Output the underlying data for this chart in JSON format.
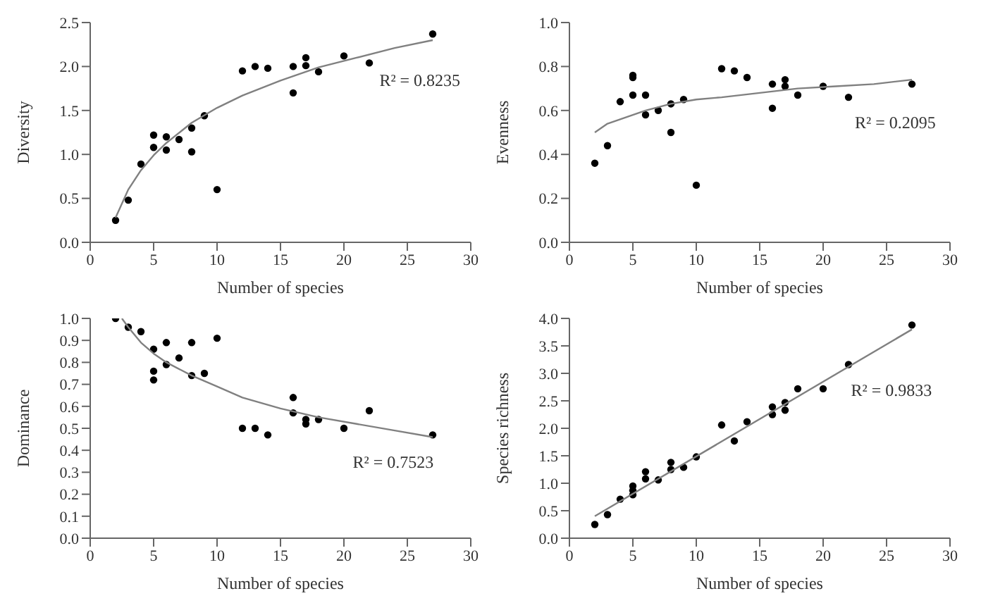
{
  "chart_data": [
    {
      "type": "scatter",
      "xlabel": "Number of species",
      "ylabel": "Diversity",
      "xlim": [
        0,
        30
      ],
      "xticks": [
        0,
        5,
        10,
        15,
        20,
        25,
        30
      ],
      "ylim": [
        0,
        2.5
      ],
      "yticks": [
        {
          "value": 0,
          "label": "0.0"
        },
        {
          "value": 0.5,
          "label": "0.5"
        },
        {
          "value": 1,
          "label": "1.0"
        },
        {
          "value": 1.5,
          "label": "1.5"
        },
        {
          "value": 2,
          "label": "2.0"
        },
        {
          "value": 2.5,
          "label": "2.5"
        }
      ],
      "annotations": [
        "R² = 0.8235"
      ],
      "x": [
        2,
        3,
        4,
        5,
        5,
        6,
        6,
        7,
        8,
        8,
        9,
        10,
        12,
        13,
        14,
        16,
        16,
        17,
        17,
        18,
        20,
        22,
        27
      ],
      "series": [
        {
          "color": "#000000",
          "marker": "circle",
          "values": [
            0.25,
            0.48,
            0.89,
            1.22,
            1.08,
            1.2,
            1.05,
            1.17,
            1.3,
            1.03,
            1.44,
            0.6,
            1.95,
            2.0,
            1.98,
            2.0,
            1.7,
            2.1,
            2.01,
            1.94,
            2.12,
            2.04,
            2.37
          ]
        },
        {
          "type": "line",
          "color": "#808080",
          "line_style": "solid",
          "marker": "none",
          "x": [
            2,
            3,
            4,
            5,
            6,
            8,
            10,
            12,
            15,
            18,
            21,
            24,
            27
          ],
          "values": [
            0.28,
            0.6,
            0.82,
            0.99,
            1.13,
            1.36,
            1.53,
            1.67,
            1.84,
            1.99,
            2.1,
            2.21,
            2.3
          ]
        }
      ]
    },
    {
      "type": "scatter",
      "xlabel": "Number of species",
      "ylabel": "Evenness",
      "xlim": [
        0,
        30
      ],
      "xticks": [
        0,
        5,
        10,
        15,
        20,
        25,
        30
      ],
      "ylim": [
        0,
        1
      ],
      "yticks": [
        {
          "value": 0,
          "label": "0.0"
        },
        0.2,
        0.4,
        0.6,
        0.8,
        {
          "value": 1,
          "label": "1.0"
        }
      ],
      "annotations": [
        "R² = 0.2095"
      ],
      "x": [
        2,
        3,
        4,
        5,
        5,
        5,
        6,
        6,
        7,
        8,
        8,
        9,
        10,
        12,
        13,
        14,
        16,
        16,
        17,
        17,
        18,
        20,
        22,
        27
      ],
      "series": [
        {
          "color": "#000000",
          "marker": "circle",
          "values": [
            0.36,
            0.44,
            0.64,
            0.76,
            0.75,
            0.67,
            0.67,
            0.58,
            0.6,
            0.63,
            0.5,
            0.65,
            0.26,
            0.79,
            0.78,
            0.75,
            0.72,
            0.61,
            0.74,
            0.71,
            0.67,
            0.71,
            0.66,
            0.72
          ]
        },
        {
          "type": "line",
          "color": "#808080",
          "line_style": "solid",
          "marker": "none",
          "x": [
            2,
            3,
            4,
            5,
            6,
            8,
            10,
            12,
            15,
            18,
            21,
            24,
            27
          ],
          "values": [
            0.5,
            0.54,
            0.56,
            0.58,
            0.6,
            0.63,
            0.65,
            0.66,
            0.68,
            0.7,
            0.71,
            0.72,
            0.74
          ]
        }
      ]
    },
    {
      "type": "scatter",
      "xlabel": "Number of species",
      "ylabel": "Dominance",
      "xlim": [
        0,
        30
      ],
      "xticks": [
        0,
        5,
        10,
        15,
        20,
        25,
        30
      ],
      "ylim": [
        0,
        1
      ],
      "yticks": [
        {
          "value": 0,
          "label": "0.0"
        },
        0.1,
        0.2,
        0.3,
        0.4,
        0.5,
        0.6,
        0.7,
        0.8,
        0.9,
        {
          "value": 1,
          "label": "1.0"
        }
      ],
      "annotations": [
        "R² = 0.7523"
      ],
      "x": [
        2,
        3,
        4,
        5,
        5,
        5,
        6,
        6,
        7,
        8,
        8,
        9,
        10,
        12,
        13,
        14,
        16,
        16,
        17,
        17,
        18,
        20,
        22,
        27
      ],
      "series": [
        {
          "color": "#000000",
          "marker": "circle",
          "values": [
            1.0,
            0.96,
            0.94,
            0.86,
            0.76,
            0.72,
            0.89,
            0.79,
            0.82,
            0.89,
            0.74,
            0.75,
            0.91,
            0.5,
            0.5,
            0.47,
            0.64,
            0.57,
            0.54,
            0.52,
            0.54,
            0.5,
            0.58,
            0.47
          ]
        },
        {
          "type": "line",
          "color": "#808080",
          "line_style": "solid",
          "marker": "none",
          "x": [
            2.5,
            3,
            4,
            5,
            6,
            8,
            10,
            12,
            15,
            18,
            21,
            24,
            27
          ],
          "values": [
            1.0,
            0.96,
            0.89,
            0.84,
            0.8,
            0.74,
            0.69,
            0.64,
            0.59,
            0.55,
            0.52,
            0.49,
            0.46
          ]
        }
      ]
    },
    {
      "type": "scatter",
      "xlabel": "Number of species",
      "ylabel": "Species richness",
      "xlim": [
        0,
        30
      ],
      "xticks": [
        0,
        5,
        10,
        15,
        20,
        25,
        30
      ],
      "ylim": [
        0,
        4
      ],
      "yticks": [
        {
          "value": 0,
          "label": "0.0"
        },
        0.5,
        {
          "value": 1,
          "label": "1.0"
        },
        1.5,
        {
          "value": 2,
          "label": "2.0"
        },
        2.5,
        {
          "value": 3,
          "label": "3.0"
        },
        3.5,
        {
          "value": 4,
          "label": "4.0"
        }
      ],
      "annotations": [
        "R² = 0.9833"
      ],
      "x": [
        2,
        3,
        4,
        5,
        5,
        5,
        6,
        6,
        7,
        8,
        8,
        9,
        10,
        12,
        13,
        14,
        16,
        16,
        17,
        17,
        18,
        20,
        22,
        27
      ],
      "series": [
        {
          "color": "#000000",
          "marker": "circle",
          "values": [
            0.25,
            0.43,
            0.71,
            0.95,
            0.87,
            0.79,
            1.21,
            1.08,
            1.06,
            1.38,
            1.25,
            1.29,
            1.48,
            2.06,
            1.77,
            2.12,
            2.39,
            2.25,
            2.47,
            2.33,
            2.72,
            2.72,
            3.16,
            3.88
          ]
        },
        {
          "type": "line",
          "color": "#808080",
          "line_style": "solid",
          "marker": "none",
          "x": [
            2,
            27
          ],
          "values": [
            0.4,
            3.8
          ]
        }
      ]
    }
  ]
}
